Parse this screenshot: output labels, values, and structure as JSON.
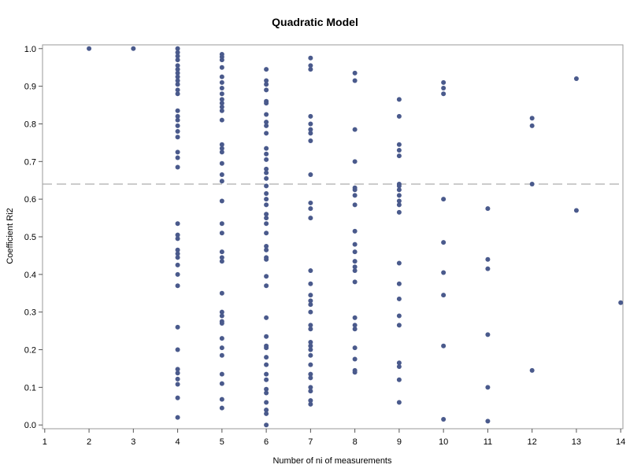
{
  "chart_data": {
    "type": "scatter",
    "title": "Quadratic Model",
    "xlabel": "Number of ni of measurements",
    "ylabel": "Coefficient Ri2",
    "xlim": [
      0.95,
      14.05
    ],
    "ylim": [
      -0.01,
      1.01
    ],
    "xticks": [
      "1",
      "2",
      "3",
      "4",
      "5",
      "6",
      "7",
      "8",
      "9",
      "10",
      "11",
      "12",
      "13",
      "14"
    ],
    "yticks": [
      "0.0",
      "0.1",
      "0.2",
      "0.3",
      "0.4",
      "0.5",
      "0.6",
      "0.7",
      "0.8",
      "0.9",
      "1.0"
    ],
    "reference_line": {
      "y": 0.64,
      "style": "dashed"
    },
    "grid": false,
    "colors": {
      "marker": "#4a5a8c",
      "refline": "#9a9a9a",
      "frame": "#9a9a9a"
    },
    "points": [
      [
        2,
        1.0
      ],
      [
        3,
        1.0
      ],
      [
        4,
        1.0
      ],
      [
        4,
        0.99
      ],
      [
        4,
        0.98
      ],
      [
        4,
        0.97
      ],
      [
        4,
        0.955
      ],
      [
        4,
        0.945
      ],
      [
        4,
        0.935
      ],
      [
        4,
        0.925
      ],
      [
        4,
        0.915
      ],
      [
        4,
        0.905
      ],
      [
        4,
        0.89
      ],
      [
        4,
        0.88
      ],
      [
        4,
        0.835
      ],
      [
        4,
        0.82
      ],
      [
        4,
        0.81
      ],
      [
        4,
        0.795
      ],
      [
        4,
        0.78
      ],
      [
        4,
        0.765
      ],
      [
        4,
        0.725
      ],
      [
        4,
        0.71
      ],
      [
        4,
        0.685
      ],
      [
        4,
        0.535
      ],
      [
        4,
        0.505
      ],
      [
        4,
        0.495
      ],
      [
        4,
        0.465
      ],
      [
        4,
        0.455
      ],
      [
        4,
        0.445
      ],
      [
        4,
        0.425
      ],
      [
        4,
        0.4
      ],
      [
        4,
        0.37
      ],
      [
        4,
        0.26
      ],
      [
        4,
        0.2
      ],
      [
        4,
        0.148
      ],
      [
        4,
        0.138
      ],
      [
        4,
        0.122
      ],
      [
        4,
        0.108
      ],
      [
        4,
        0.072
      ],
      [
        4,
        0.02
      ],
      [
        5,
        0.985
      ],
      [
        5,
        0.978
      ],
      [
        5,
        0.97
      ],
      [
        5,
        0.95
      ],
      [
        5,
        0.925
      ],
      [
        5,
        0.91
      ],
      [
        5,
        0.895
      ],
      [
        5,
        0.88
      ],
      [
        5,
        0.865
      ],
      [
        5,
        0.855
      ],
      [
        5,
        0.845
      ],
      [
        5,
        0.835
      ],
      [
        5,
        0.81
      ],
      [
        5,
        0.745
      ],
      [
        5,
        0.735
      ],
      [
        5,
        0.725
      ],
      [
        5,
        0.695
      ],
      [
        5,
        0.665
      ],
      [
        5,
        0.648
      ],
      [
        5,
        0.595
      ],
      [
        5,
        0.535
      ],
      [
        5,
        0.51
      ],
      [
        5,
        0.46
      ],
      [
        5,
        0.445
      ],
      [
        5,
        0.435
      ],
      [
        5,
        0.35
      ],
      [
        5,
        0.3
      ],
      [
        5,
        0.29
      ],
      [
        5,
        0.275
      ],
      [
        5,
        0.27
      ],
      [
        5,
        0.23
      ],
      [
        5,
        0.205
      ],
      [
        5,
        0.185
      ],
      [
        5,
        0.135
      ],
      [
        5,
        0.11
      ],
      [
        5,
        0.068
      ],
      [
        5,
        0.045
      ],
      [
        6,
        0.945
      ],
      [
        6,
        0.915
      ],
      [
        6,
        0.905
      ],
      [
        6,
        0.89
      ],
      [
        6,
        0.86
      ],
      [
        6,
        0.855
      ],
      [
        6,
        0.825
      ],
      [
        6,
        0.805
      ],
      [
        6,
        0.795
      ],
      [
        6,
        0.775
      ],
      [
        6,
        0.735
      ],
      [
        6,
        0.72
      ],
      [
        6,
        0.705
      ],
      [
        6,
        0.68
      ],
      [
        6,
        0.67
      ],
      [
        6,
        0.655
      ],
      [
        6,
        0.635
      ],
      [
        6,
        0.615
      ],
      [
        6,
        0.6
      ],
      [
        6,
        0.585
      ],
      [
        6,
        0.56
      ],
      [
        6,
        0.55
      ],
      [
        6,
        0.535
      ],
      [
        6,
        0.51
      ],
      [
        6,
        0.475
      ],
      [
        6,
        0.465
      ],
      [
        6,
        0.445
      ],
      [
        6,
        0.44
      ],
      [
        6,
        0.395
      ],
      [
        6,
        0.37
      ],
      [
        6,
        0.285
      ],
      [
        6,
        0.235
      ],
      [
        6,
        0.21
      ],
      [
        6,
        0.205
      ],
      [
        6,
        0.18
      ],
      [
        6,
        0.16
      ],
      [
        6,
        0.135
      ],
      [
        6,
        0.12
      ],
      [
        6,
        0.095
      ],
      [
        6,
        0.085
      ],
      [
        6,
        0.06
      ],
      [
        6,
        0.04
      ],
      [
        6,
        0.03
      ],
      [
        6,
        0.0
      ],
      [
        7,
        0.975
      ],
      [
        7,
        0.955
      ],
      [
        7,
        0.945
      ],
      [
        7,
        0.82
      ],
      [
        7,
        0.8
      ],
      [
        7,
        0.785
      ],
      [
        7,
        0.775
      ],
      [
        7,
        0.755
      ],
      [
        7,
        0.665
      ],
      [
        7,
        0.59
      ],
      [
        7,
        0.575
      ],
      [
        7,
        0.55
      ],
      [
        7,
        0.41
      ],
      [
        7,
        0.375
      ],
      [
        7,
        0.345
      ],
      [
        7,
        0.33
      ],
      [
        7,
        0.32
      ],
      [
        7,
        0.3
      ],
      [
        7,
        0.265
      ],
      [
        7,
        0.255
      ],
      [
        7,
        0.22
      ],
      [
        7,
        0.21
      ],
      [
        7,
        0.2
      ],
      [
        7,
        0.185
      ],
      [
        7,
        0.16
      ],
      [
        7,
        0.135
      ],
      [
        7,
        0.125
      ],
      [
        7,
        0.1
      ],
      [
        7,
        0.09
      ],
      [
        7,
        0.065
      ],
      [
        7,
        0.055
      ],
      [
        8,
        0.935
      ],
      [
        8,
        0.915
      ],
      [
        8,
        0.785
      ],
      [
        8,
        0.7
      ],
      [
        8,
        0.63
      ],
      [
        8,
        0.625
      ],
      [
        8,
        0.61
      ],
      [
        8,
        0.585
      ],
      [
        8,
        0.515
      ],
      [
        8,
        0.48
      ],
      [
        8,
        0.46
      ],
      [
        8,
        0.435
      ],
      [
        8,
        0.42
      ],
      [
        8,
        0.41
      ],
      [
        8,
        0.38
      ],
      [
        8,
        0.285
      ],
      [
        8,
        0.265
      ],
      [
        8,
        0.255
      ],
      [
        8,
        0.205
      ],
      [
        8,
        0.175
      ],
      [
        8,
        0.145
      ],
      [
        8,
        0.14
      ],
      [
        9,
        0.865
      ],
      [
        9,
        0.82
      ],
      [
        9,
        0.745
      ],
      [
        9,
        0.73
      ],
      [
        9,
        0.715
      ],
      [
        9,
        0.64
      ],
      [
        9,
        0.635
      ],
      [
        9,
        0.625
      ],
      [
        9,
        0.61
      ],
      [
        9,
        0.595
      ],
      [
        9,
        0.585
      ],
      [
        9,
        0.565
      ],
      [
        9,
        0.43
      ],
      [
        9,
        0.375
      ],
      [
        9,
        0.335
      ],
      [
        9,
        0.29
      ],
      [
        9,
        0.265
      ],
      [
        9,
        0.165
      ],
      [
        9,
        0.155
      ],
      [
        9,
        0.12
      ],
      [
        9,
        0.06
      ],
      [
        10,
        0.91
      ],
      [
        10,
        0.895
      ],
      [
        10,
        0.88
      ],
      [
        10,
        0.6
      ],
      [
        10,
        0.485
      ],
      [
        10,
        0.405
      ],
      [
        10,
        0.345
      ],
      [
        10,
        0.21
      ],
      [
        10,
        0.015
      ],
      [
        11,
        0.575
      ],
      [
        11,
        0.44
      ],
      [
        11,
        0.415
      ],
      [
        11,
        0.24
      ],
      [
        11,
        0.1
      ],
      [
        11,
        0.01
      ],
      [
        12,
        0.815
      ],
      [
        12,
        0.795
      ],
      [
        12,
        0.64
      ],
      [
        12,
        0.145
      ],
      [
        13,
        0.92
      ],
      [
        13,
        0.57
      ],
      [
        14,
        0.325
      ]
    ]
  }
}
